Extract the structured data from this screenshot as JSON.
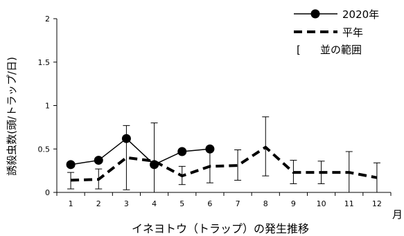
{
  "chart_data": {
    "type": "line",
    "title": "イネヨトウ（トラップ）の発生推移",
    "xlabel": "月",
    "ylabel": "誘殺虫数(頭/トラップ/日)",
    "categories": [
      "1",
      "2",
      "3",
      "4",
      "5",
      "6",
      "7",
      "8",
      "9",
      "10",
      "11",
      "12"
    ],
    "ylim": [
      0,
      2
    ],
    "yticks": [
      "0",
      "0.5",
      "1",
      "1.5",
      "2"
    ],
    "grid": false,
    "legend_position": "top-right",
    "series": [
      {
        "name": "2020年",
        "style": "solid-line-with-circle-markers",
        "values": [
          0.32,
          0.37,
          0.62,
          0.32,
          0.47,
          0.5,
          null,
          null,
          null,
          null,
          null,
          null
        ]
      },
      {
        "name": "平年",
        "style": "thick-dashed-line",
        "values": [
          0.14,
          0.15,
          0.4,
          0.36,
          0.19,
          0.3,
          0.31,
          0.52,
          0.23,
          0.23,
          0.23,
          0.17
        ]
      }
    ],
    "range": {
      "name": "並の範囲",
      "low": [
        0.04,
        0.04,
        0.03,
        0.0,
        0.09,
        0.11,
        0.14,
        0.19,
        0.1,
        0.1,
        0.0,
        0.0
      ],
      "high": [
        0.23,
        0.27,
        0.77,
        0.8,
        0.3,
        0.49,
        0.49,
        0.87,
        0.37,
        0.36,
        0.47,
        0.34
      ]
    }
  },
  "legend": {
    "marker_symbol": "[",
    "items": [
      "2020年",
      "平年",
      "並の範囲"
    ]
  },
  "colors": {
    "line": "#000000",
    "background": "#ffffff"
  }
}
